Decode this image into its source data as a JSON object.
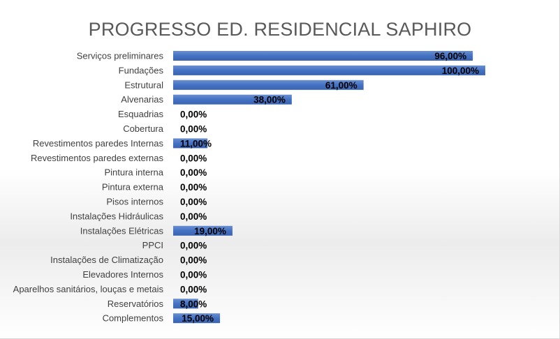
{
  "chart_data": {
    "type": "bar",
    "orientation": "horizontal",
    "title": "PROGRESSO ED. RESIDENCIAL SAPHIRO",
    "xlabel": "",
    "ylabel": "",
    "xlim": [
      0,
      100
    ],
    "grid": false,
    "legend": "none",
    "bar_color": "#4472C4",
    "categories": [
      "Serviços preliminares",
      "Fundações",
      "Estrutural",
      "Alvenarias",
      "Esquadrias",
      "Cobertura",
      "Revestimentos paredes Internas",
      "Revestimentos paredes externas",
      "Pintura interna",
      "Pintura externa",
      "Pisos internos",
      "Instalações Hidráulicas",
      "Instalações Elétricas",
      "PPCI",
      "Instalações de Climatização",
      "Elevadores Internos",
      "Aparelhos sanitários, louças e metais",
      "Reservatórios",
      "Complementos"
    ],
    "values": [
      96,
      100,
      61,
      38,
      0,
      0,
      11,
      0,
      0,
      0,
      0,
      0,
      19,
      0,
      0,
      0,
      0,
      8,
      15
    ],
    "value_labels": [
      "96,00%",
      "100,00%",
      "61,00%",
      "38,00%",
      "0,00%",
      "0,00%",
      "11,00%",
      "0,00%",
      "0,00%",
      "0,00%",
      "0,00%",
      "0,00%",
      "19,00%",
      "0,00%",
      "0,00%",
      "0,00%",
      "0,00%",
      "8,00%",
      "15,00%"
    ]
  }
}
